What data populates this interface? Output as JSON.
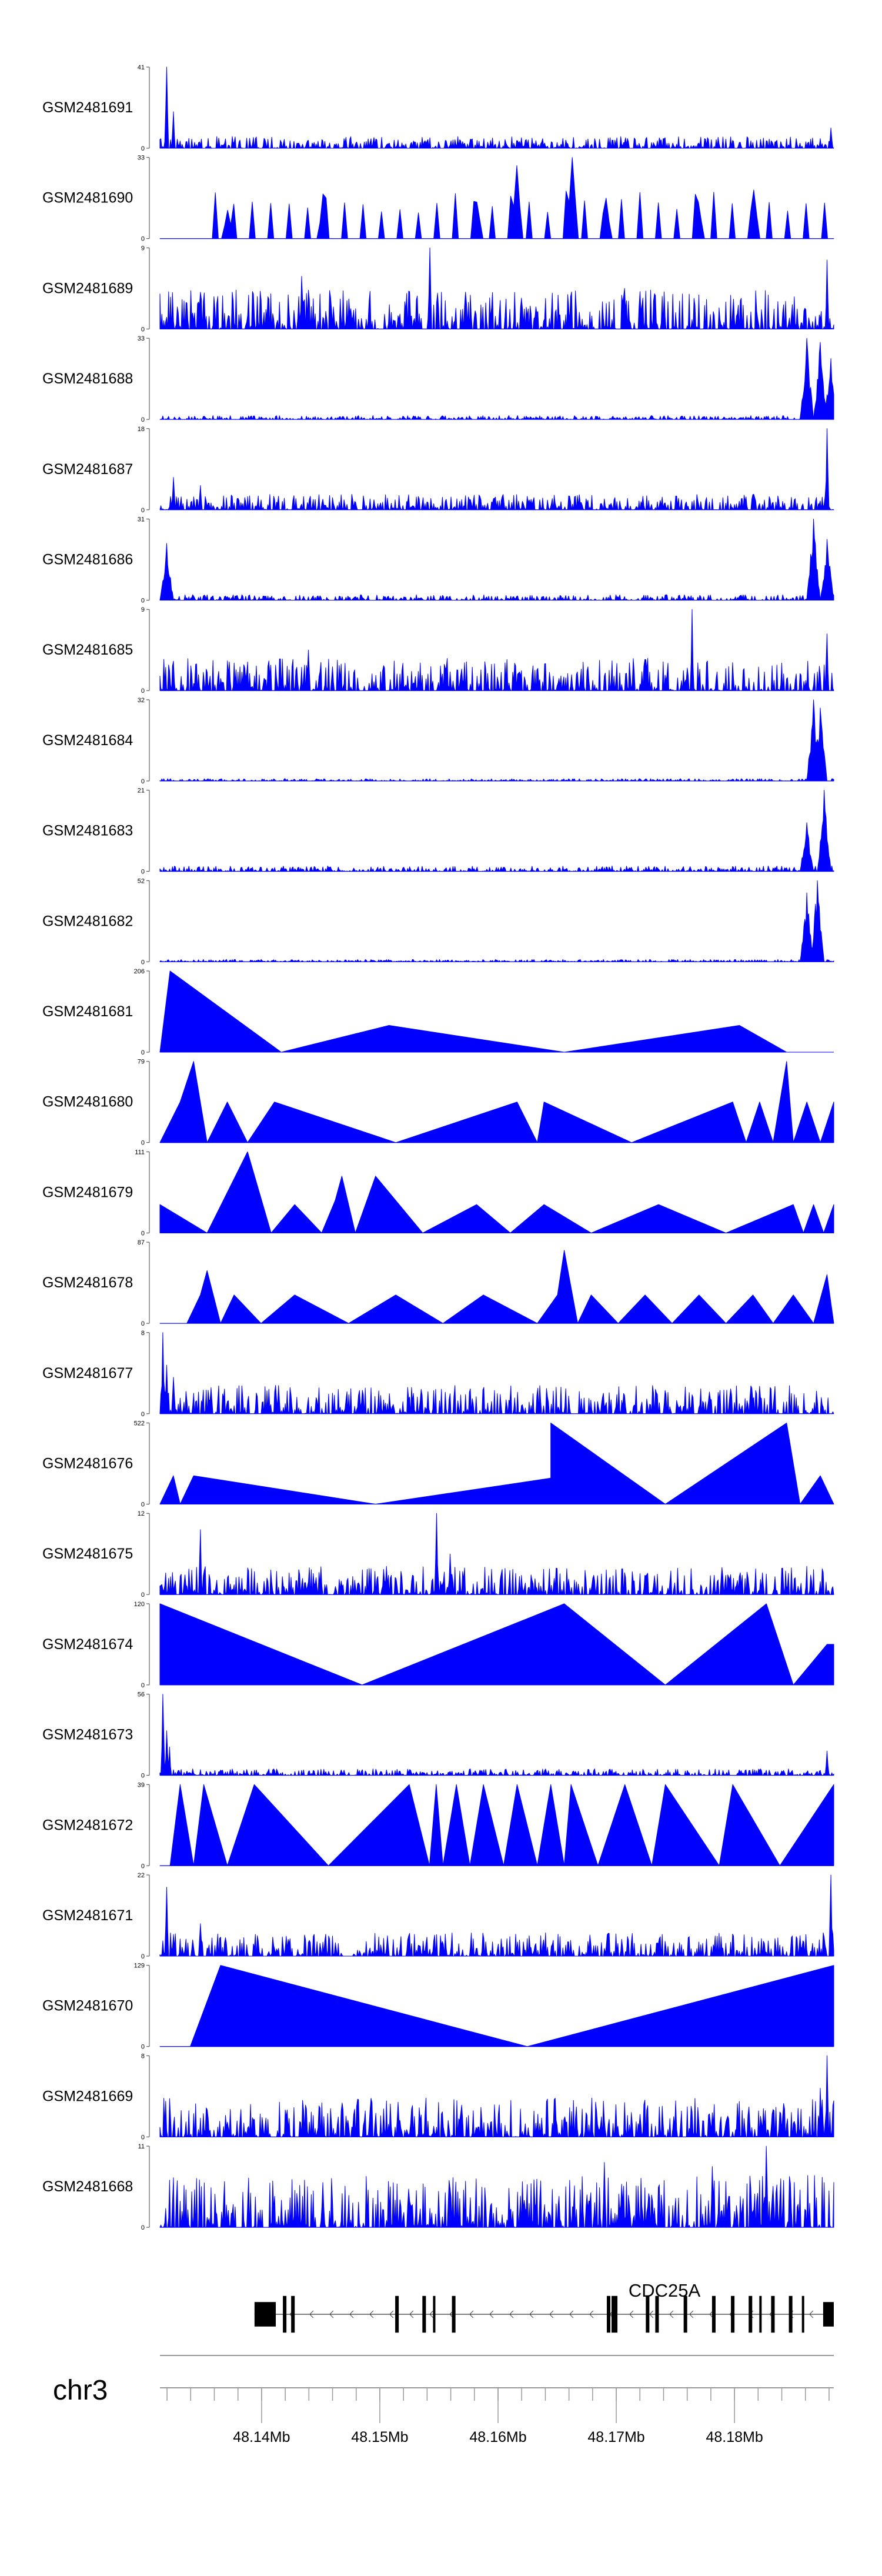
{
  "chart_data": {
    "type": "area",
    "title": "",
    "chromosome": "chr3",
    "x_unit": "Mb",
    "xlim": [
      48.1314,
      48.1884
    ],
    "x_ticks": [
      48.14,
      48.15,
      48.16,
      48.17,
      48.18
    ],
    "x_tick_labels": [
      "48.14Mb",
      "48.15Mb",
      "48.16Mb",
      "48.17Mb",
      "48.18Mb"
    ],
    "gene": {
      "name": "CDC25A",
      "strand": "-",
      "tx_start": 48.1394,
      "tx_end": 48.1884,
      "exons": [
        [
          48.1394,
          48.1412
        ],
        [
          48.1418,
          48.1421
        ],
        [
          48.1425,
          48.1428
        ],
        [
          48.1513,
          48.1516
        ],
        [
          48.1536,
          48.1539
        ],
        [
          48.1545,
          48.1547
        ],
        [
          48.1561,
          48.1564
        ],
        [
          48.1692,
          48.1695
        ],
        [
          48.1696,
          48.1701
        ],
        [
          48.1725,
          48.1728
        ],
        [
          48.1733,
          48.1736
        ],
        [
          48.1757,
          48.176
        ],
        [
          48.1781,
          48.1784
        ],
        [
          48.1797,
          48.18
        ],
        [
          48.1812,
          48.1815
        ],
        [
          48.1821,
          48.1823
        ],
        [
          48.1831,
          48.1834
        ],
        [
          48.1846,
          48.1849
        ],
        [
          48.1857,
          48.1859
        ],
        [
          48.1875,
          48.1884
        ]
      ]
    },
    "series": [
      {
        "name": "GSM2481691",
        "ymax": 41,
        "ymin": 0,
        "pattern": "noise",
        "base": 0.09,
        "spikes": [
          [
            0.01,
            1.0
          ],
          [
            0.02,
            0.45
          ],
          [
            0.995,
            0.25
          ]
        ]
      },
      {
        "name": "GSM2481690",
        "ymax": 33,
        "ymin": 0,
        "pattern": "peaks",
        "base": 0.5,
        "start": 0.06,
        "spikes": [
          [
            0.1,
            0.35
          ],
          [
            0.24,
            0.55
          ],
          [
            0.47,
            0.45
          ],
          [
            0.53,
            0.9
          ],
          [
            0.61,
            1.0
          ],
          [
            0.66,
            0.5
          ],
          [
            0.8,
            0.45
          ],
          [
            0.88,
            0.6
          ]
        ]
      },
      {
        "name": "GSM2481689",
        "ymax": 9,
        "ymin": 0,
        "pattern": "noise",
        "base": 0.3,
        "spikes": [
          [
            0.4,
            1.0
          ],
          [
            0.21,
            0.65
          ],
          [
            0.69,
            0.5
          ],
          [
            0.99,
            0.85
          ]
        ]
      },
      {
        "name": "GSM2481688",
        "ymax": 33,
        "ymin": 0,
        "pattern": "rise",
        "base": 0.05,
        "spikes": [
          [
            0.96,
            1.0
          ],
          [
            0.98,
            0.95
          ],
          [
            0.995,
            0.75
          ]
        ]
      },
      {
        "name": "GSM2481687",
        "ymax": 18,
        "ymin": 0,
        "pattern": "noise",
        "base": 0.12,
        "spikes": [
          [
            0.02,
            0.4
          ],
          [
            0.06,
            0.3
          ],
          [
            0.99,
            1.0
          ]
        ]
      },
      {
        "name": "GSM2481686",
        "ymax": 31,
        "ymin": 0,
        "pattern": "rise",
        "base": 0.07,
        "spikes": [
          [
            0.01,
            0.7
          ],
          [
            0.97,
            1.0
          ],
          [
            0.99,
            0.75
          ]
        ]
      },
      {
        "name": "GSM2481685",
        "ymax": 9,
        "ymin": 0,
        "pattern": "noise",
        "base": 0.25,
        "spikes": [
          [
            0.79,
            1.0
          ],
          [
            0.22,
            0.5
          ],
          [
            0.99,
            0.7
          ]
        ]
      },
      {
        "name": "GSM2481684",
        "ymax": 32,
        "ymin": 0,
        "pattern": "rise",
        "base": 0.03,
        "spikes": [
          [
            0.97,
            1.0
          ],
          [
            0.98,
            0.9
          ]
        ]
      },
      {
        "name": "GSM2481683",
        "ymax": 21,
        "ymin": 0,
        "pattern": "rise",
        "base": 0.07,
        "spikes": [
          [
            0.985,
            1.0
          ],
          [
            0.96,
            0.6
          ]
        ]
      },
      {
        "name": "GSM2481682",
        "ymax": 52,
        "ymin": 0,
        "pattern": "rise",
        "base": 0.03,
        "spikes": [
          [
            0.975,
            1.0
          ],
          [
            0.96,
            0.85
          ]
        ]
      },
      {
        "name": "GSM2481681",
        "ymax": 206,
        "ymin": 0,
        "pattern": "polyline",
        "points": [
          [
            0.0,
            0.0
          ],
          [
            0.015,
            1.0
          ],
          [
            0.18,
            0.0
          ],
          [
            0.34,
            0.33
          ],
          [
            0.6,
            0.0
          ],
          [
            0.86,
            0.33
          ],
          [
            0.93,
            0.0
          ]
        ]
      },
      {
        "name": "GSM2481680",
        "ymax": 79,
        "ymin": 0,
        "pattern": "polyline",
        "points": [
          [
            0.0,
            0.0
          ],
          [
            0.03,
            0.5
          ],
          [
            0.05,
            1.0
          ],
          [
            0.07,
            0.0
          ],
          [
            0.1,
            0.5
          ],
          [
            0.13,
            0.0
          ],
          [
            0.17,
            0.5
          ],
          [
            0.35,
            0.0
          ],
          [
            0.53,
            0.5
          ],
          [
            0.56,
            0.0
          ],
          [
            0.57,
            0.5
          ],
          [
            0.7,
            0.0
          ],
          [
            0.85,
            0.5
          ],
          [
            0.87,
            0.0
          ],
          [
            0.89,
            0.5
          ],
          [
            0.91,
            0.0
          ],
          [
            0.92,
            0.5
          ],
          [
            0.93,
            1.0
          ],
          [
            0.94,
            0.0
          ],
          [
            0.96,
            0.5
          ],
          [
            0.98,
            0.0
          ],
          [
            1.0,
            0.5
          ]
        ]
      },
      {
        "name": "GSM2481679",
        "ymax": 111,
        "ymin": 0,
        "pattern": "polyline",
        "points": [
          [
            0.0,
            0.35
          ],
          [
            0.07,
            0.0
          ],
          [
            0.13,
            1.0
          ],
          [
            0.165,
            0.0
          ],
          [
            0.2,
            0.35
          ],
          [
            0.24,
            0.0
          ],
          [
            0.26,
            0.4
          ],
          [
            0.27,
            0.7
          ],
          [
            0.29,
            0.0
          ],
          [
            0.32,
            0.7
          ],
          [
            0.39,
            0.0
          ],
          [
            0.47,
            0.35
          ],
          [
            0.52,
            0.0
          ],
          [
            0.57,
            0.35
          ],
          [
            0.64,
            0.0
          ],
          [
            0.74,
            0.35
          ],
          [
            0.84,
            0.0
          ],
          [
            0.94,
            0.35
          ],
          [
            0.955,
            0.0
          ],
          [
            0.97,
            0.35
          ],
          [
            0.985,
            0.0
          ],
          [
            1.0,
            0.35
          ]
        ]
      },
      {
        "name": "GSM2481678",
        "ymax": 87,
        "ymin": 0,
        "pattern": "polyline",
        "points": [
          [
            0.0,
            0.0
          ],
          [
            0.04,
            0.0
          ],
          [
            0.06,
            0.35
          ],
          [
            0.07,
            0.65
          ],
          [
            0.09,
            0.0
          ],
          [
            0.11,
            0.35
          ],
          [
            0.15,
            0.0
          ],
          [
            0.2,
            0.35
          ],
          [
            0.28,
            0.0
          ],
          [
            0.35,
            0.35
          ],
          [
            0.42,
            0.0
          ],
          [
            0.48,
            0.35
          ],
          [
            0.56,
            0.0
          ],
          [
            0.59,
            0.35
          ],
          [
            0.6,
            0.9
          ],
          [
            0.62,
            0.0
          ],
          [
            0.64,
            0.35
          ],
          [
            0.68,
            0.0
          ],
          [
            0.72,
            0.35
          ],
          [
            0.76,
            0.0
          ],
          [
            0.8,
            0.35
          ],
          [
            0.84,
            0.0
          ],
          [
            0.88,
            0.35
          ],
          [
            0.91,
            0.0
          ],
          [
            0.94,
            0.35
          ],
          [
            0.97,
            0.0
          ],
          [
            0.99,
            0.6
          ],
          [
            1.0,
            0.0
          ]
        ]
      },
      {
        "name": "GSM2481677",
        "ymax": 8,
        "ymin": 0,
        "pattern": "noise",
        "base": 0.22,
        "spikes": [
          [
            0.005,
            1.0
          ],
          [
            0.01,
            0.6
          ],
          [
            0.02,
            0.45
          ]
        ]
      },
      {
        "name": "GSM2481676",
        "ymax": 522,
        "ymin": 0,
        "pattern": "polyline",
        "points": [
          [
            0.0,
            0.0
          ],
          [
            0.02,
            0.35
          ],
          [
            0.03,
            0.0
          ],
          [
            0.05,
            0.35
          ],
          [
            0.32,
            0.0
          ],
          [
            0.58,
            0.32
          ],
          [
            0.58,
            1.0
          ],
          [
            0.75,
            0.0
          ],
          [
            0.93,
            1.0
          ],
          [
            0.95,
            0.0
          ],
          [
            0.98,
            0.35
          ],
          [
            1.0,
            0.0
          ]
        ]
      },
      {
        "name": "GSM2481675",
        "ymax": 12,
        "ymin": 0,
        "pattern": "noise",
        "base": 0.22,
        "spikes": [
          [
            0.41,
            1.0
          ],
          [
            0.06,
            0.8
          ],
          [
            0.43,
            0.5
          ]
        ]
      },
      {
        "name": "GSM2481674",
        "ymax": 120,
        "ymin": 0,
        "pattern": "polyline",
        "points": [
          [
            0.0,
            1.0
          ],
          [
            0.3,
            0.0
          ],
          [
            0.6,
            1.0
          ],
          [
            0.75,
            0.0
          ],
          [
            0.9,
            1.0
          ],
          [
            0.94,
            0.0
          ],
          [
            0.99,
            0.5
          ],
          [
            1.0,
            0.5
          ]
        ]
      },
      {
        "name": "GSM2481673",
        "ymax": 56,
        "ymin": 0,
        "pattern": "noise",
        "base": 0.05,
        "spikes": [
          [
            0.005,
            1.0
          ],
          [
            0.01,
            0.55
          ],
          [
            0.015,
            0.35
          ],
          [
            0.99,
            0.3
          ]
        ]
      },
      {
        "name": "GSM2481672",
        "ymax": 39,
        "ymin": 0,
        "pattern": "polyline",
        "points": [
          [
            0.0,
            0.0
          ],
          [
            0.015,
            0.0
          ],
          [
            0.03,
            1.0
          ],
          [
            0.05,
            0.0
          ],
          [
            0.065,
            1.0
          ],
          [
            0.1,
            0.0
          ],
          [
            0.14,
            1.0
          ],
          [
            0.25,
            0.0
          ],
          [
            0.37,
            1.0
          ],
          [
            0.4,
            0.0
          ],
          [
            0.41,
            1.0
          ],
          [
            0.42,
            0.0
          ],
          [
            0.44,
            1.0
          ],
          [
            0.46,
            0.0
          ],
          [
            0.48,
            1.0
          ],
          [
            0.51,
            0.0
          ],
          [
            0.53,
            1.0
          ],
          [
            0.56,
            0.0
          ],
          [
            0.58,
            1.0
          ],
          [
            0.6,
            0.0
          ],
          [
            0.61,
            1.0
          ],
          [
            0.65,
            0.0
          ],
          [
            0.69,
            1.0
          ],
          [
            0.73,
            0.0
          ],
          [
            0.75,
            1.0
          ],
          [
            0.83,
            0.0
          ],
          [
            0.85,
            1.0
          ],
          [
            0.92,
            0.0
          ],
          [
            1.0,
            1.0
          ]
        ]
      },
      {
        "name": "GSM2481671",
        "ymax": 22,
        "ymin": 0,
        "pattern": "noise",
        "base": 0.18,
        "spikes": [
          [
            0.01,
            0.85
          ],
          [
            0.995,
            1.0
          ],
          [
            0.06,
            0.4
          ]
        ]
      },
      {
        "name": "GSM2481670",
        "ymax": 129,
        "ymin": 0,
        "pattern": "polyline",
        "points": [
          [
            0.0,
            0.0
          ],
          [
            0.045,
            0.0
          ],
          [
            0.09,
            1.0
          ],
          [
            0.545,
            0.0
          ],
          [
            1.0,
            1.0
          ]
        ]
      },
      {
        "name": "GSM2481669",
        "ymax": 8,
        "ymin": 0,
        "pattern": "noise",
        "base": 0.3,
        "spikes": [
          [
            0.99,
            1.0
          ],
          [
            0.98,
            0.6
          ]
        ]
      },
      {
        "name": "GSM2481668",
        "ymax": 11,
        "ymin": 0,
        "pattern": "noise",
        "base": 0.4,
        "spikes": [
          [
            0.9,
            1.0
          ],
          [
            0.66,
            0.8
          ],
          [
            0.82,
            0.75
          ]
        ]
      }
    ],
    "color": "#0000ff"
  }
}
